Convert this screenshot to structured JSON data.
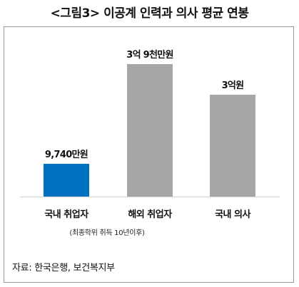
{
  "chart_data": {
    "type": "bar",
    "title": "<그림3> 이공계 인력과 의사 평균 연봉",
    "categories": [
      "국내 취업자",
      "해외 취업자",
      "국내 의사"
    ],
    "category_notes": [
      "",
      "(최종학위 취득 10년이후)",
      ""
    ],
    "values": [
      9740,
      39000,
      30000
    ],
    "value_labels": [
      "9,740만원",
      "3억 9천만원",
      "3억원"
    ],
    "unit": "만원",
    "colors": [
      "#0070c0",
      "#a6a6a6",
      "#a6a6a6"
    ],
    "ylim": [
      0,
      39000
    ],
    "grid": false,
    "legend": "none"
  },
  "source": "자료: 한국은행, 보건복지부"
}
